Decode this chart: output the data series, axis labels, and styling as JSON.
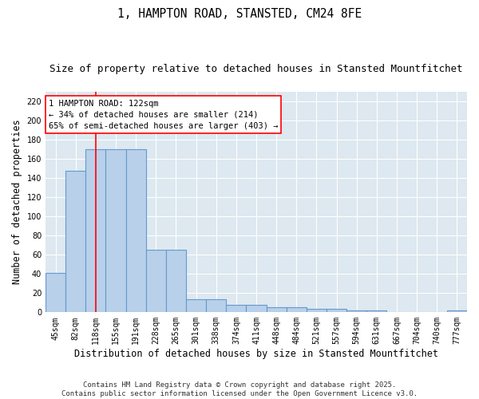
{
  "title": "1, HAMPTON ROAD, STANSTED, CM24 8FE",
  "subtitle": "Size of property relative to detached houses in Stansted Mountfitchet",
  "xlabel": "Distribution of detached houses by size in Stansted Mountfitchet",
  "ylabel": "Number of detached properties",
  "categories": [
    "45sqm",
    "82sqm",
    "118sqm",
    "155sqm",
    "191sqm",
    "228sqm",
    "265sqm",
    "301sqm",
    "338sqm",
    "374sqm",
    "411sqm",
    "448sqm",
    "484sqm",
    "521sqm",
    "557sqm",
    "594sqm",
    "631sqm",
    "667sqm",
    "704sqm",
    "740sqm",
    "777sqm"
  ],
  "values": [
    41,
    148,
    170,
    170,
    170,
    65,
    65,
    14,
    14,
    8,
    8,
    5,
    5,
    4,
    4,
    2,
    2,
    0,
    0,
    0,
    2
  ],
  "bar_color": "#b8d0ea",
  "bar_edge_color": "#6699cc",
  "red_line_x": 2,
  "annotation_text": "1 HAMPTON ROAD: 122sqm\n← 34% of detached houses are smaller (214)\n65% of semi-detached houses are larger (403) →",
  "annotation_box_color": "white",
  "annotation_box_edge_color": "red",
  "ylim": [
    0,
    230
  ],
  "yticks": [
    0,
    20,
    40,
    60,
    80,
    100,
    120,
    140,
    160,
    180,
    200,
    220
  ],
  "fig_background_color": "#ffffff",
  "plot_background_color": "#dde8f0",
  "footer_text": "Contains HM Land Registry data © Crown copyright and database right 2025.\nContains public sector information licensed under the Open Government Licence v3.0.",
  "title_fontsize": 10.5,
  "subtitle_fontsize": 9,
  "xlabel_fontsize": 8.5,
  "ylabel_fontsize": 8.5,
  "tick_fontsize": 7,
  "annotation_fontsize": 7.5,
  "footer_fontsize": 6.5
}
